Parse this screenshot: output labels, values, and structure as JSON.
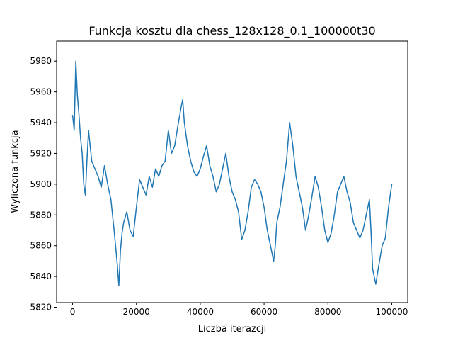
{
  "chart_data": {
    "type": "line",
    "title": "Funkcja kosztu dla chess_128x128_0.1_100000t30",
    "xlabel": "Liczba iterazcji",
    "ylabel": "Wyliczona funkcja",
    "xlim": [
      -5000,
      105000
    ],
    "ylim": [
      5823,
      5993
    ],
    "xticks": [
      0,
      20000,
      40000,
      60000,
      80000,
      100000
    ],
    "yticks": [
      5820,
      5840,
      5860,
      5880,
      5900,
      5920,
      5940,
      5960,
      5980
    ],
    "grid": false,
    "line_color": "#1f77b4",
    "series": [
      {
        "x": [
          0,
          500,
          1000,
          1500,
          2000,
          2500,
          3000,
          3500,
          4000,
          4500,
          5000,
          5500,
          6000,
          7000,
          8000,
          9000,
          10000,
          11000,
          12000,
          13000,
          14000,
          14500,
          15000,
          15500,
          16000,
          17000,
          18000,
          19000,
          20000,
          21000,
          22000,
          23000,
          24000,
          25000,
          26000,
          27000,
          28000,
          29000,
          30000,
          31000,
          32000,
          33000,
          34000,
          34500,
          35000,
          36000,
          37000,
          38000,
          39000,
          40000,
          41000,
          42000,
          43000,
          44000,
          45000,
          46000,
          47000,
          48000,
          49000,
          50000,
          51000,
          52000,
          53000,
          54000,
          55000,
          56000,
          57000,
          58000,
          59000,
          60000,
          61000,
          62000,
          63000,
          63500,
          64000,
          65000,
          66000,
          67000,
          68000,
          69000,
          70000,
          71000,
          72000,
          73000,
          74000,
          75000,
          76000,
          77000,
          78000,
          79000,
          80000,
          81000,
          82000,
          83000,
          84000,
          85000,
          86000,
          87000,
          88000,
          89000,
          90000,
          91000,
          92000,
          93000,
          93500,
          94000,
          95000,
          96000,
          97000,
          98000,
          99000,
          100000
        ],
        "y": [
          5945,
          5935,
          5980,
          5958,
          5945,
          5930,
          5920,
          5900,
          5893,
          5915,
          5935,
          5925,
          5915,
          5910,
          5905,
          5898,
          5912,
          5900,
          5890,
          5870,
          5848,
          5834,
          5857,
          5868,
          5875,
          5882,
          5870,
          5866,
          5885,
          5903,
          5898,
          5893,
          5905,
          5898,
          5910,
          5905,
          5912,
          5915,
          5935,
          5920,
          5925,
          5938,
          5950,
          5955,
          5940,
          5925,
          5915,
          5908,
          5905,
          5910,
          5918,
          5925,
          5912,
          5905,
          5895,
          5900,
          5910,
          5920,
          5905,
          5895,
          5890,
          5882,
          5864,
          5870,
          5882,
          5898,
          5903,
          5900,
          5895,
          5885,
          5870,
          5860,
          5850,
          5860,
          5875,
          5885,
          5900,
          5915,
          5940,
          5925,
          5905,
          5895,
          5885,
          5870,
          5880,
          5892,
          5905,
          5898,
          5885,
          5870,
          5862,
          5868,
          5880,
          5895,
          5900,
          5905,
          5895,
          5888,
          5875,
          5870,
          5865,
          5870,
          5880,
          5890,
          5870,
          5845,
          5835,
          5848,
          5860,
          5865,
          5885,
          5900
        ]
      }
    ]
  }
}
